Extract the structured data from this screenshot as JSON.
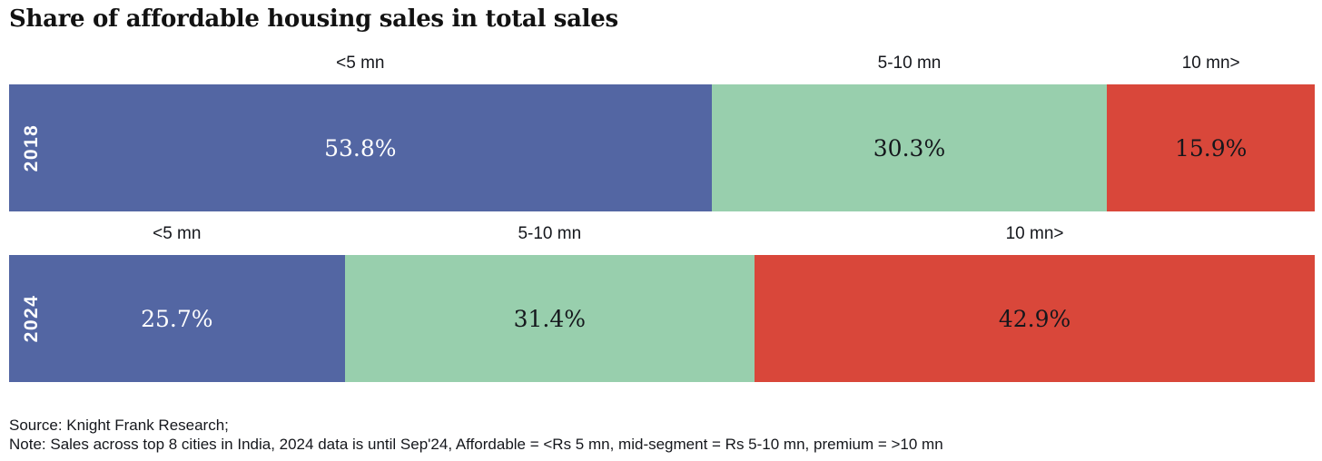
{
  "chart_data": {
    "type": "bar",
    "orientation": "horizontal-stacked",
    "title": "Share of affordable housing sales in total sales",
    "categories": [
      "<5 mn",
      "5-10 mn",
      "10 mn>"
    ],
    "rows": [
      {
        "year": "2018",
        "values": [
          53.8,
          30.3,
          15.9
        ],
        "labels": [
          "53.8%",
          "30.3%",
          "15.9%"
        ]
      },
      {
        "year": "2024",
        "values": [
          25.7,
          31.4,
          42.9
        ],
        "labels": [
          "25.7%",
          "31.4%",
          "42.9%"
        ]
      }
    ],
    "segment_colors": [
      "#5366a3",
      "#98cfad",
      "#d9473a"
    ],
    "segment_text_colors": [
      "#ffffff",
      "#15171c",
      "#15171c"
    ],
    "xlim": [
      0,
      100
    ],
    "grid": false,
    "legend_position": "above-each-segment",
    "source": "Source: Knight Frank Research;",
    "note": "Note: Sales across top 8 cities in India, 2024 data is until Sep'24, Affordable = <Rs 5 mn, mid-segment = Rs 5-10 mn, premium = >10 mn"
  }
}
